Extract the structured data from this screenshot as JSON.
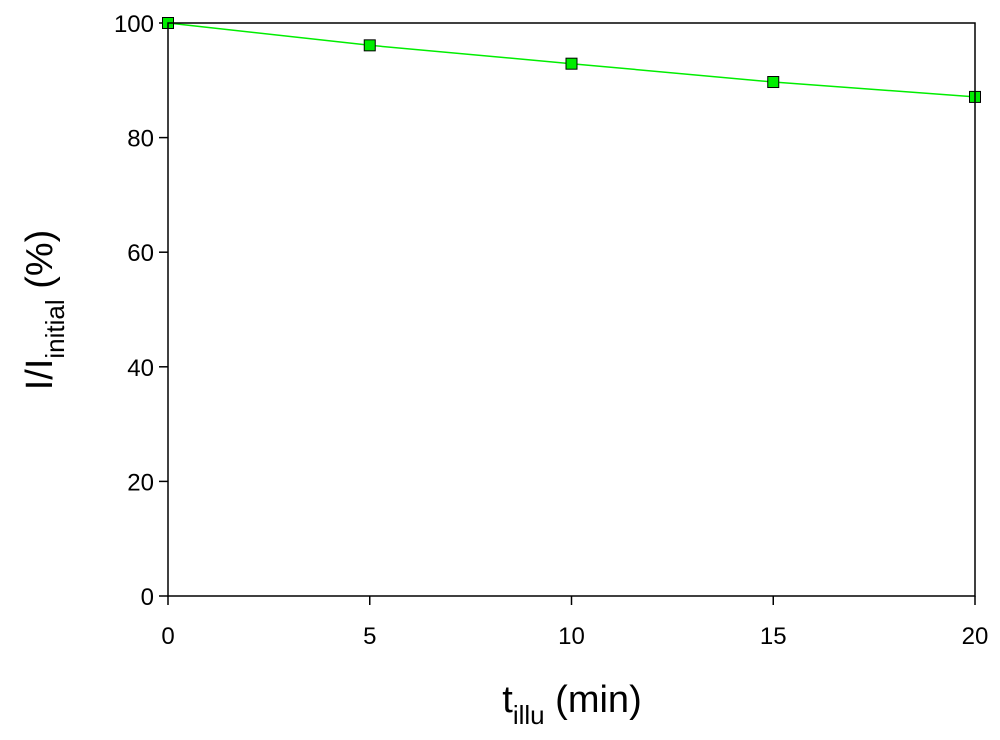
{
  "chart_data": {
    "type": "line",
    "title": "",
    "xlabel": {
      "main": "t",
      "sub": "illu",
      "unit": " (min)"
    },
    "ylabel": {
      "main": "I/I",
      "sub": "initial",
      "unit": " (%)"
    },
    "xlim": [
      0,
      20
    ],
    "ylim": [
      0,
      100
    ],
    "xticks": [
      "0",
      "5",
      "10",
      "15",
      "20"
    ],
    "yticks": [
      "0",
      "20",
      "40",
      "60",
      "80",
      "100"
    ],
    "grid": false,
    "series": [
      {
        "x": [
          0,
          5,
          10,
          15,
          20
        ],
        "y": [
          100,
          96.1,
          92.9,
          89.7,
          87.1
        ],
        "color": "#00ee00",
        "marker_color": "#00ee00",
        "marker": "square"
      }
    ]
  }
}
